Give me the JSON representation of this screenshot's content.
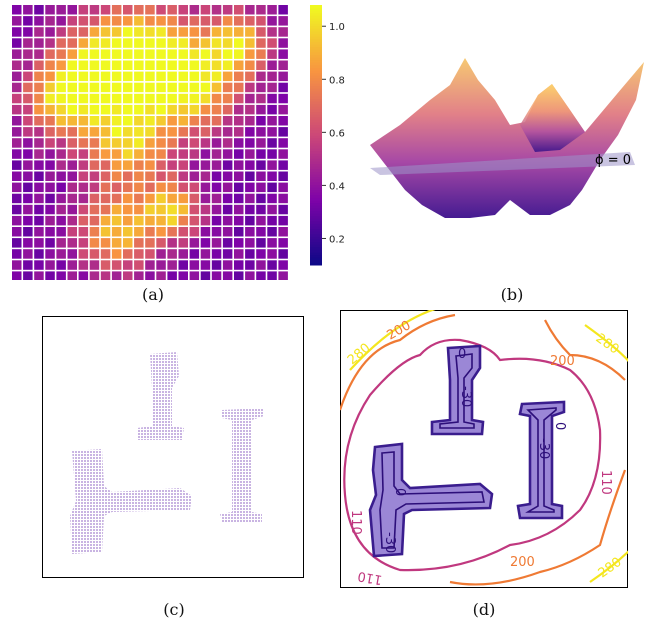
{
  "captions": {
    "a": "(a)",
    "b": "(b)",
    "c": "(c)",
    "d": "(d)"
  },
  "colorbar": {
    "ticks": [
      "0.2",
      "0.4",
      "0.6",
      "0.8",
      "1.0"
    ],
    "tick_values": [
      0.2,
      0.4,
      0.6,
      0.8,
      1.0
    ],
    "min": 0.1,
    "max": 1.08,
    "colormap": "plasma"
  },
  "surface": {
    "plane_label": "ϕ = 0"
  },
  "contours": {
    "labels": {
      "zero_1": "0",
      "neg30_1": "-30",
      "zero_2": "0",
      "neg30_2": "-30",
      "zero_3": "0",
      "neg30_3": "-30",
      "l110_left": "110",
      "l110_right": "110",
      "l110_bottom": "110",
      "l200_top": "200",
      "l200_right": "200",
      "l200_bottom": "200",
      "l280_top_left": "280",
      "l280_top_right": "280",
      "l280_bottom_right": "280"
    },
    "colors": {
      "neg30": "#2d0f7a",
      "zero": "#3a1d8e",
      "fill": "#9b87d6",
      "c110": "#c0387f",
      "c200": "#ef7a34",
      "c280": "#f4e61e"
    }
  }
}
